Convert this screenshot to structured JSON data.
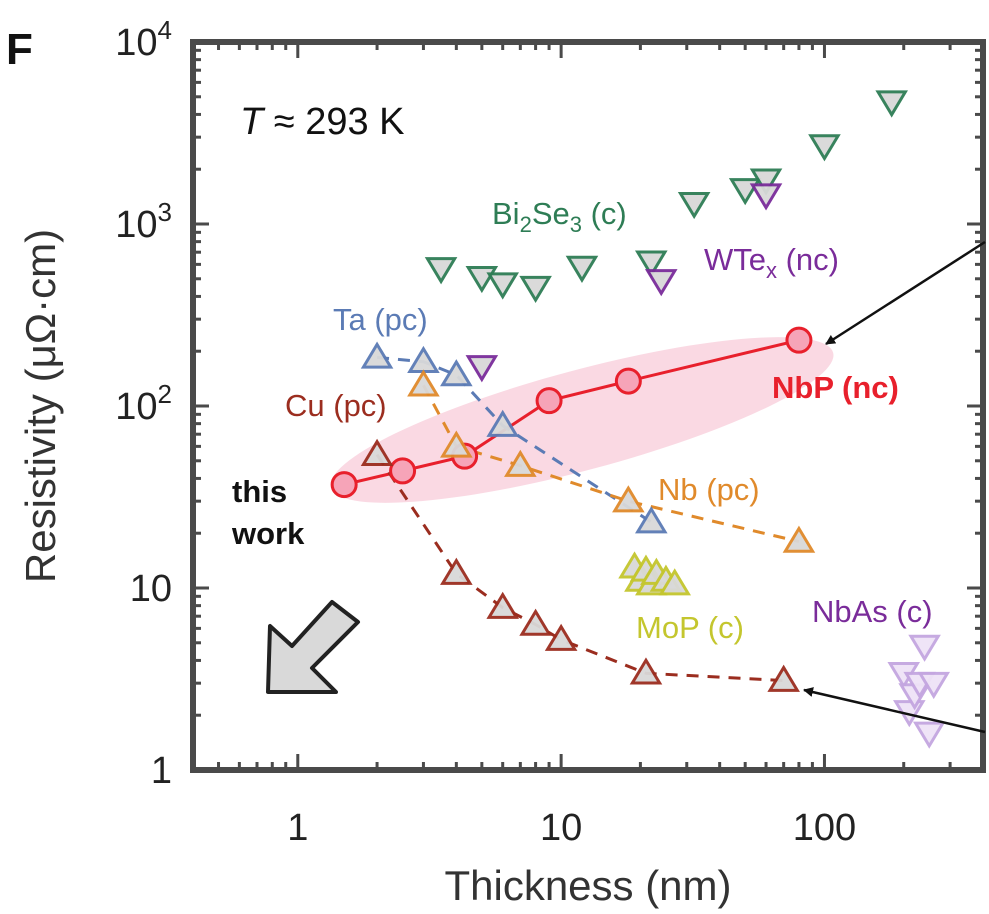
{
  "panel_label": "F",
  "chart_data": {
    "type": "scatter",
    "xlabel": "Thickness (nm)",
    "ylabel": "Resistivity (μΩ·cm)",
    "x_scale": "log",
    "y_scale": "log",
    "xlim": [
      0.4,
      400
    ],
    "ylim": [
      1,
      10000
    ],
    "x_ticks": [
      {
        "value": 1,
        "label": "1"
      },
      {
        "value": 10,
        "label": "10"
      },
      {
        "value": 100,
        "label": "100"
      }
    ],
    "y_ticks": [
      {
        "value": 1,
        "base": "1",
        "exp": ""
      },
      {
        "value": 10,
        "base": "10",
        "exp": ""
      },
      {
        "value": 100,
        "base": "10",
        "exp": "2"
      },
      {
        "value": 1000,
        "base": "10",
        "exp": "3"
      },
      {
        "value": 10000,
        "base": "10",
        "exp": "4"
      }
    ],
    "annotation": {
      "symbol": "T",
      "text": " ≈ 293 K"
    },
    "this_work": [
      "this",
      "work"
    ],
    "series": [
      {
        "key": "nbp",
        "label": "NbP (nc)",
        "marker": "circle",
        "line": "solid",
        "color": "#e8202c",
        "fill": "#f6a4b8",
        "x": [
          1.5,
          2.5,
          4.3,
          9,
          18,
          80
        ],
        "y": [
          37,
          44,
          53,
          107,
          137,
          230
        ]
      },
      {
        "key": "cu",
        "label": "Cu (pc)",
        "marker": "triangle-up",
        "line": "dashed",
        "color": "#9b2d1f",
        "fill": "#d9d9d9",
        "x": [
          2,
          4,
          6,
          8,
          10,
          21,
          70
        ],
        "y": [
          54,
          12,
          7.8,
          6.3,
          5.2,
          3.4,
          3.1
        ]
      },
      {
        "key": "ta",
        "label": "Ta (pc)",
        "marker": "triangle-up",
        "line": "dashed",
        "color": "#5b7bb5",
        "fill": "#d9d9d9",
        "x": [
          2,
          3,
          4,
          6,
          22
        ],
        "y": [
          185,
          175,
          148,
          78,
          23
        ]
      },
      {
        "key": "nb",
        "label": "Nb (pc)",
        "marker": "triangle-up",
        "line": "dashed",
        "color": "#e08a2b",
        "fill": "#d9d9d9",
        "x": [
          3,
          4,
          7,
          18,
          80
        ],
        "y": [
          130,
          60,
          47,
          30,
          18
        ]
      },
      {
        "key": "bi2se3",
        "label_parts": [
          "Bi",
          "2",
          "Se",
          "3",
          " (c)"
        ],
        "marker": "triangle-down",
        "line": "none",
        "color": "#2e7d55",
        "fill": "#d9d9d9",
        "x": [
          3.5,
          5,
          6,
          8,
          12,
          22,
          32,
          50,
          60,
          100,
          180
        ],
        "y": [
          570,
          510,
          470,
          450,
          580,
          620,
          1300,
          1550,
          1750,
          2700,
          4700
        ]
      },
      {
        "key": "wtex",
        "label_parts": [
          "WTe",
          "x",
          " (nc)"
        ],
        "marker": "triangle-down",
        "line": "none",
        "color": "#7a2c9a",
        "fill": "#d9d9d9",
        "x": [
          5,
          24,
          60
        ],
        "y": [
          165,
          490,
          1450
        ]
      },
      {
        "key": "mop",
        "label": "MoP (c)",
        "marker": "triangle-up",
        "line": "none",
        "color": "#c4c62e",
        "fill": "#d9d9d9",
        "x": [
          19,
          20,
          21,
          22,
          23,
          25,
          27
        ],
        "y": [
          13,
          11,
          12.5,
          10.5,
          12,
          11,
          10.5
        ]
      },
      {
        "key": "nbas",
        "label": "NbAs (c)",
        "marker": "triangle-down",
        "line": "none",
        "color": "#c4a6e0",
        "fill": "#efe3f7",
        "x": [
          200,
          210,
          220,
          230,
          240,
          250,
          260
        ],
        "y": [
          3.4,
          2.1,
          2.6,
          3.0,
          4.8,
          1.6,
          3.0
        ]
      }
    ]
  }
}
